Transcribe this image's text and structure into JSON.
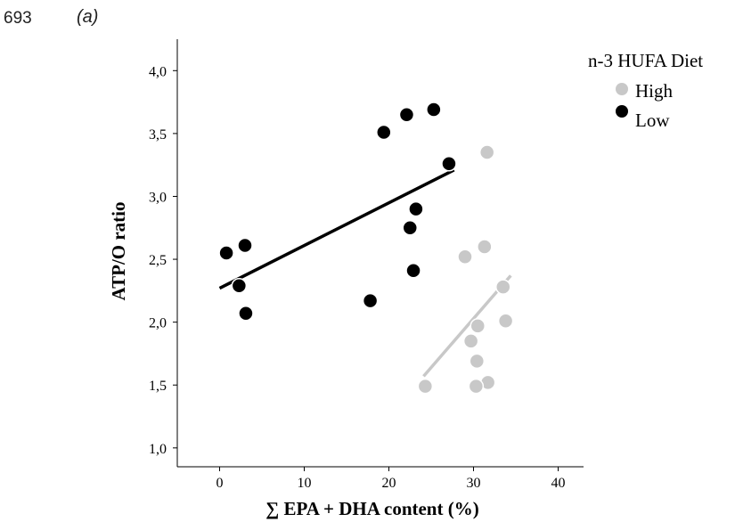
{
  "page": {
    "line_number": "693",
    "panel_label": "(a)"
  },
  "chart_data": {
    "type": "scatter",
    "xlabel": "∑ EPA + DHA content (%)",
    "ylabel": "ATP/O ratio",
    "xlim": [
      -5,
      43
    ],
    "ylim": [
      0.85,
      4.25
    ],
    "x_ticks": [
      0,
      10,
      20,
      30,
      40
    ],
    "x_tick_labels": [
      "0",
      "10",
      "20",
      "30",
      "40"
    ],
    "y_ticks": [
      1.0,
      1.5,
      2.0,
      2.5,
      3.0,
      3.5,
      4.0
    ],
    "y_tick_labels": [
      "1,0",
      "1,5",
      "2,0",
      "2,5",
      "3,0",
      "3,5",
      "4,0"
    ],
    "grid": false,
    "legend": {
      "title": "n-3 HUFA Diet",
      "position": "top-right"
    },
    "series": [
      {
        "name": "High",
        "color": "#c8c8c8",
        "points": [
          {
            "x": 31.6,
            "y": 3.35
          },
          {
            "x": 31.3,
            "y": 2.6
          },
          {
            "x": 29.0,
            "y": 2.52
          },
          {
            "x": 33.5,
            "y": 2.28
          },
          {
            "x": 33.8,
            "y": 2.01
          },
          {
            "x": 30.5,
            "y": 1.97
          },
          {
            "x": 29.7,
            "y": 1.85
          },
          {
            "x": 30.4,
            "y": 1.69
          },
          {
            "x": 31.7,
            "y": 1.52
          },
          {
            "x": 30.3,
            "y": 1.49
          },
          {
            "x": 24.3,
            "y": 1.49
          }
        ],
        "fit": {
          "x1": 24.1,
          "y1": 1.57,
          "x2": 34.4,
          "y2": 2.37
        }
      },
      {
        "name": "Low",
        "color": "#000000",
        "points": [
          {
            "x": 0.8,
            "y": 2.55
          },
          {
            "x": 3.0,
            "y": 2.61
          },
          {
            "x": 2.3,
            "y": 2.29
          },
          {
            "x": 3.1,
            "y": 2.07
          },
          {
            "x": 17.8,
            "y": 2.17
          },
          {
            "x": 19.4,
            "y": 3.51
          },
          {
            "x": 22.1,
            "y": 3.65
          },
          {
            "x": 25.3,
            "y": 3.69
          },
          {
            "x": 27.1,
            "y": 3.26
          },
          {
            "x": 22.5,
            "y": 2.75
          },
          {
            "x": 23.2,
            "y": 2.9
          },
          {
            "x": 22.9,
            "y": 2.41
          }
        ],
        "fit": {
          "x1": 0.0,
          "y1": 2.27,
          "x2": 27.7,
          "y2": 3.21
        }
      }
    ]
  }
}
